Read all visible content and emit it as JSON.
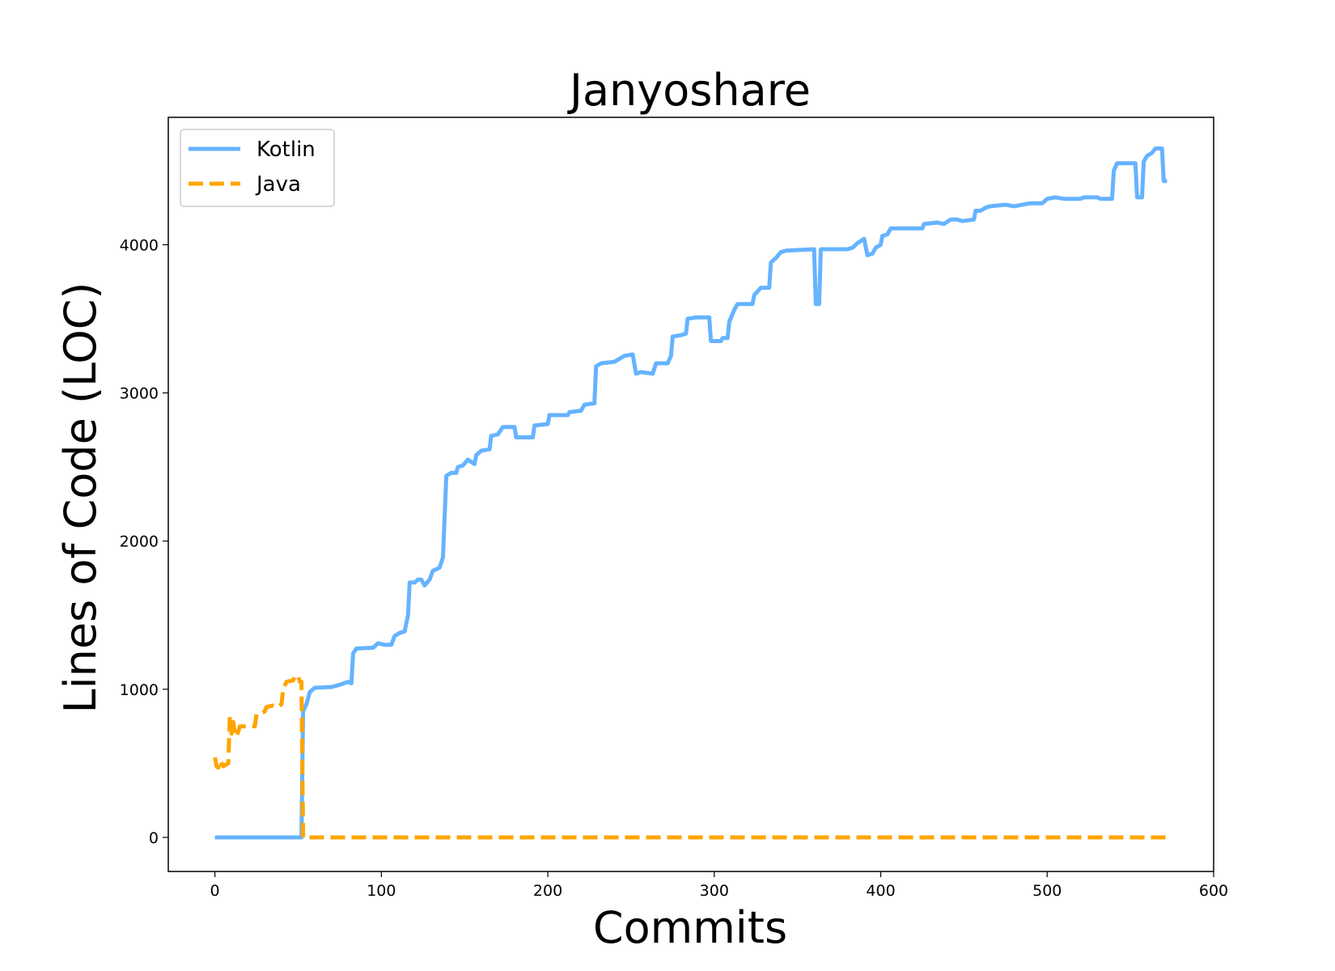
{
  "chart_data": {
    "type": "line",
    "title": "Janyoshare",
    "xlabel": "Commits",
    "ylabel": "Lines of Code (LOC)",
    "xlim": [
      -28,
      600
    ],
    "ylim": [
      -230,
      4860
    ],
    "xticks": [
      0,
      100,
      200,
      300,
      400,
      500,
      600
    ],
    "yticks": [
      0,
      1000,
      2000,
      3000,
      4000
    ],
    "grid": false,
    "legend_position": "upper-left",
    "series": [
      {
        "name": "Kotlin",
        "color": "#66b3ff",
        "dash": "solid",
        "points": [
          [
            0,
            0
          ],
          [
            52,
            0
          ],
          [
            53,
            850
          ],
          [
            55,
            900
          ],
          [
            57,
            980
          ],
          [
            60,
            1010
          ],
          [
            70,
            1015
          ],
          [
            75,
            1030
          ],
          [
            80,
            1050
          ],
          [
            82,
            1040
          ],
          [
            83,
            1240
          ],
          [
            85,
            1275
          ],
          [
            95,
            1280
          ],
          [
            98,
            1310
          ],
          [
            102,
            1300
          ],
          [
            106,
            1300
          ],
          [
            108,
            1360
          ],
          [
            111,
            1380
          ],
          [
            114,
            1390
          ],
          [
            116,
            1500
          ],
          [
            117,
            1720
          ],
          [
            120,
            1720
          ],
          [
            122,
            1740
          ],
          [
            124,
            1740
          ],
          [
            126,
            1700
          ],
          [
            129,
            1740
          ],
          [
            131,
            1800
          ],
          [
            135,
            1820
          ],
          [
            137,
            1890
          ],
          [
            139,
            2440
          ],
          [
            142,
            2460
          ],
          [
            145,
            2460
          ],
          [
            146,
            2500
          ],
          [
            149,
            2510
          ],
          [
            152,
            2550
          ],
          [
            156,
            2520
          ],
          [
            157,
            2580
          ],
          [
            160,
            2610
          ],
          [
            165,
            2620
          ],
          [
            166,
            2710
          ],
          [
            170,
            2720
          ],
          [
            173,
            2770
          ],
          [
            180,
            2770
          ],
          [
            181,
            2700
          ],
          [
            191,
            2700
          ],
          [
            192,
            2780
          ],
          [
            200,
            2790
          ],
          [
            201,
            2850
          ],
          [
            212,
            2850
          ],
          [
            213,
            2870
          ],
          [
            220,
            2880
          ],
          [
            222,
            2920
          ],
          [
            228,
            2930
          ],
          [
            229,
            3180
          ],
          [
            232,
            3200
          ],
          [
            240,
            3210
          ],
          [
            246,
            3250
          ],
          [
            251,
            3260
          ],
          [
            253,
            3130
          ],
          [
            256,
            3140
          ],
          [
            263,
            3130
          ],
          [
            265,
            3200
          ],
          [
            272,
            3200
          ],
          [
            274,
            3250
          ],
          [
            275,
            3380
          ],
          [
            280,
            3390
          ],
          [
            283,
            3400
          ],
          [
            284,
            3500
          ],
          [
            289,
            3510
          ],
          [
            297,
            3510
          ],
          [
            298,
            3350
          ],
          [
            304,
            3350
          ],
          [
            305,
            3370
          ],
          [
            308,
            3370
          ],
          [
            309,
            3480
          ],
          [
            312,
            3560
          ],
          [
            314,
            3600
          ],
          [
            323,
            3600
          ],
          [
            324,
            3660
          ],
          [
            328,
            3710
          ],
          [
            333,
            3710
          ],
          [
            334,
            3880
          ],
          [
            337,
            3910
          ],
          [
            340,
            3950
          ],
          [
            343,
            3960
          ],
          [
            360,
            3970
          ],
          [
            361,
            3600
          ],
          [
            363,
            3600
          ],
          [
            364,
            3970
          ],
          [
            380,
            3970
          ],
          [
            383,
            3980
          ],
          [
            386,
            4010
          ],
          [
            390,
            4040
          ],
          [
            392,
            3930
          ],
          [
            395,
            3940
          ],
          [
            397,
            3980
          ],
          [
            400,
            4000
          ],
          [
            401,
            4060
          ],
          [
            404,
            4070
          ],
          [
            406,
            4110
          ],
          [
            425,
            4110
          ],
          [
            426,
            4140
          ],
          [
            434,
            4150
          ],
          [
            438,
            4140
          ],
          [
            442,
            4170
          ],
          [
            446,
            4170
          ],
          [
            449,
            4160
          ],
          [
            456,
            4170
          ],
          [
            457,
            4230
          ],
          [
            460,
            4230
          ],
          [
            463,
            4250
          ],
          [
            466,
            4260
          ],
          [
            475,
            4270
          ],
          [
            480,
            4260
          ],
          [
            490,
            4280
          ],
          [
            497,
            4280
          ],
          [
            500,
            4310
          ],
          [
            505,
            4320
          ],
          [
            510,
            4310
          ],
          [
            520,
            4310
          ],
          [
            522,
            4320
          ],
          [
            530,
            4320
          ],
          [
            532,
            4310
          ],
          [
            539,
            4310
          ],
          [
            540,
            4500
          ],
          [
            542,
            4550
          ],
          [
            553,
            4550
          ],
          [
            554,
            4320
          ],
          [
            557,
            4320
          ],
          [
            558,
            4560
          ],
          [
            560,
            4600
          ],
          [
            563,
            4620
          ],
          [
            565,
            4650
          ],
          [
            569,
            4650
          ],
          [
            570,
            4430
          ],
          [
            572,
            4430
          ]
        ]
      },
      {
        "name": "Java",
        "color": "#ffa500",
        "dash": "dashed",
        "points": [
          [
            0,
            540
          ],
          [
            1,
            480
          ],
          [
            2,
            470
          ],
          [
            3,
            520
          ],
          [
            5,
            480
          ],
          [
            8,
            500
          ],
          [
            9,
            820
          ],
          [
            10,
            700
          ],
          [
            11,
            780
          ],
          [
            12,
            700
          ],
          [
            13,
            680
          ],
          [
            15,
            750
          ],
          [
            24,
            750
          ],
          [
            25,
            830
          ],
          [
            30,
            850
          ],
          [
            31,
            880
          ],
          [
            35,
            890
          ],
          [
            38,
            880
          ],
          [
            40,
            900
          ],
          [
            41,
            1000
          ],
          [
            43,
            1050
          ],
          [
            47,
            1060
          ],
          [
            48,
            1090
          ],
          [
            50,
            1090
          ],
          [
            51,
            1050
          ],
          [
            52,
            1050
          ],
          [
            53,
            0
          ],
          [
            572,
            0
          ]
        ]
      }
    ]
  }
}
